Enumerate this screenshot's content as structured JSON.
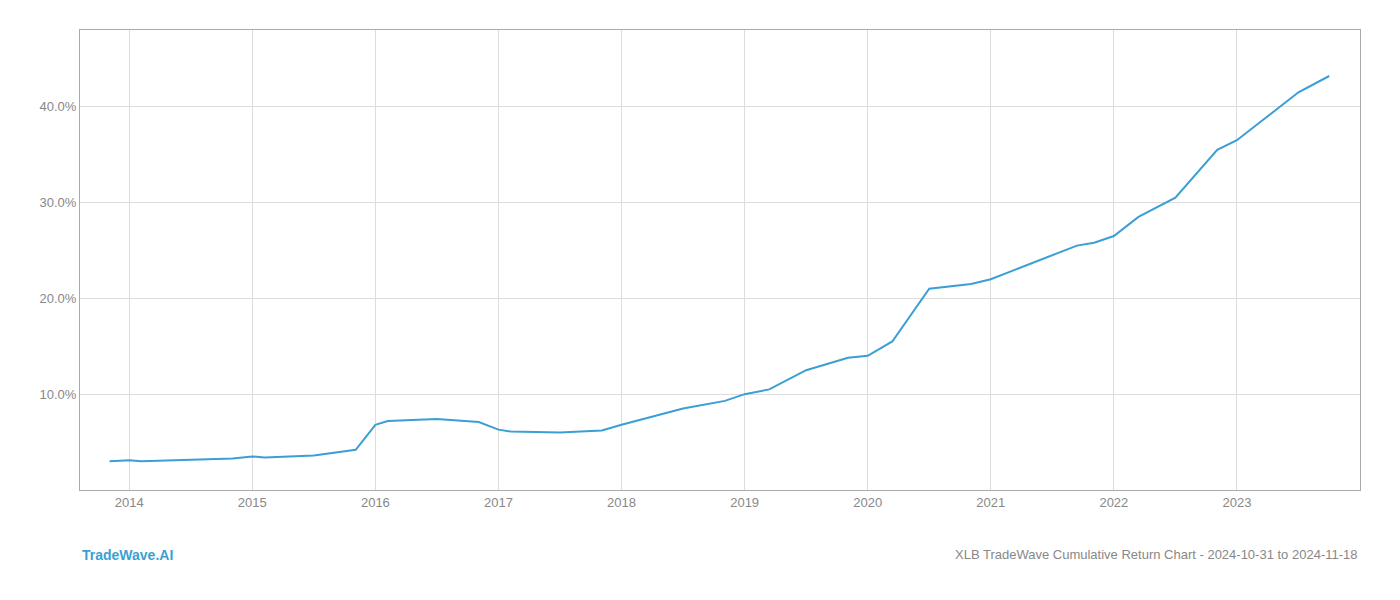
{
  "chart_data": {
    "type": "line",
    "title": "XLB TradeWave Cumulative Return Chart - 2024-10-31 to 2024-11-18",
    "annotations": [
      "TradeWave.AI"
    ],
    "x": [
      2013.84,
      2014.0,
      2014.1,
      2014.84,
      2015.0,
      2015.1,
      2015.5,
      2015.84,
      2016.0,
      2016.1,
      2016.5,
      2016.84,
      2017.0,
      2017.1,
      2017.5,
      2017.84,
      2018.0,
      2018.2,
      2018.5,
      2018.84,
      2019.0,
      2019.2,
      2019.5,
      2019.84,
      2020.0,
      2020.2,
      2020.5,
      2020.84,
      2021.0,
      2021.2,
      2021.5,
      2021.7,
      2021.84,
      2022.0,
      2022.2,
      2022.5,
      2022.84,
      2023.0,
      2023.2,
      2023.5,
      2023.75
    ],
    "values": [
      3.0,
      3.1,
      3.0,
      3.3,
      3.5,
      3.4,
      3.6,
      4.2,
      6.8,
      7.2,
      7.4,
      7.1,
      6.3,
      6.1,
      6.0,
      6.2,
      6.8,
      7.5,
      8.5,
      9.3,
      10.0,
      10.5,
      12.5,
      13.8,
      14.0,
      15.5,
      21.0,
      21.5,
      22.0,
      23.0,
      24.5,
      25.5,
      25.8,
      26.5,
      28.5,
      30.5,
      35.5,
      36.5,
      38.5,
      41.5,
      43.2
    ],
    "color": "#3a9fd4",
    "xlim": [
      2013.6,
      2024.0
    ],
    "ylim": [
      0,
      48
    ],
    "xticks": [
      2014,
      2015,
      2016,
      2017,
      2018,
      2019,
      2020,
      2021,
      2022,
      2023
    ],
    "yticks": [
      {
        "value": 10.0,
        "label": "10.0%"
      },
      {
        "value": 20.0,
        "label": "20.0%"
      },
      {
        "value": 30.0,
        "label": "30.0%"
      },
      {
        "value": 40.0,
        "label": "40.0%"
      }
    ],
    "grid": true
  }
}
